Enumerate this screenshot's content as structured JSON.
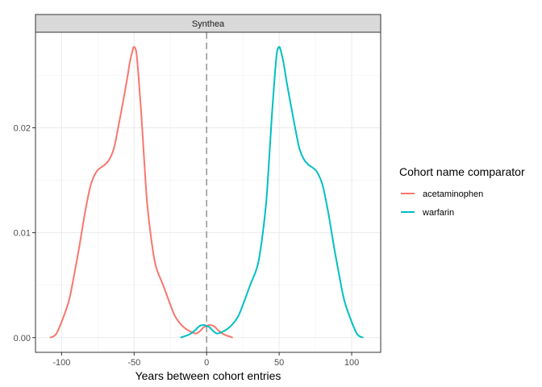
{
  "chart_data": {
    "type": "line",
    "facet_label": "Synthea",
    "xlabel": "Years between cohort entries",
    "ylabel": "",
    "xlim": [
      -118,
      120
    ],
    "ylim": [
      -0.0014,
      0.0291
    ],
    "x_ticks": [
      -100,
      -50,
      0,
      50,
      100
    ],
    "x_tick_labels": [
      "-100",
      "-50",
      "0",
      "50",
      "100"
    ],
    "y_ticks": [
      0.0,
      0.01,
      0.02
    ],
    "y_tick_labels": [
      "0.00",
      "0.01",
      "0.02"
    ],
    "reference_line_x": 0,
    "grid": true,
    "legend": {
      "title": "Cohort name comparator",
      "placement": "right"
    },
    "series": [
      {
        "name": "acetaminophen",
        "color": "#F8766D",
        "points": [
          [
            -108,
            0.0
          ],
          [
            -104,
            0.0003
          ],
          [
            -100,
            0.0015
          ],
          [
            -95,
            0.0035
          ],
          [
            -92,
            0.0055
          ],
          [
            -88,
            0.0085
          ],
          [
            -84,
            0.0118
          ],
          [
            -80,
            0.0145
          ],
          [
            -76,
            0.0158
          ],
          [
            -72,
            0.0163
          ],
          [
            -70,
            0.0165
          ],
          [
            -67,
            0.017
          ],
          [
            -64,
            0.018
          ],
          [
            -61,
            0.02
          ],
          [
            -58,
            0.0222
          ],
          [
            -55,
            0.0245
          ],
          [
            -53,
            0.0262
          ],
          [
            -51,
            0.0274
          ],
          [
            -50,
            0.0277
          ],
          [
            -48.5,
            0.0272
          ],
          [
            -47,
            0.025
          ],
          [
            -45,
            0.0212
          ],
          [
            -43,
            0.0168
          ],
          [
            -41,
            0.0128
          ],
          [
            -38,
            0.0092
          ],
          [
            -35,
            0.0068
          ],
          [
            -30,
            0.005
          ],
          [
            -26,
            0.0035
          ],
          [
            -22,
            0.0021
          ],
          [
            -18,
            0.0013
          ],
          [
            -14,
            0.0008
          ],
          [
            -10,
            0.0005
          ],
          [
            -7,
            0.0004
          ],
          [
            -4,
            0.0007
          ],
          [
            -2,
            0.001
          ],
          [
            0,
            0.0011
          ],
          [
            2,
            0.0012
          ],
          [
            5,
            0.0011
          ],
          [
            8,
            0.0007
          ],
          [
            12,
            0.0003
          ],
          [
            16,
            0.0001
          ],
          [
            18,
            0.0
          ]
        ]
      },
      {
        "name": "warfarin",
        "color": "#00BFC4",
        "points": [
          [
            -18,
            0.0
          ],
          [
            -16,
            0.0001
          ],
          [
            -12,
            0.0003
          ],
          [
            -8,
            0.0007
          ],
          [
            -5,
            0.0011
          ],
          [
            -2,
            0.0012
          ],
          [
            0,
            0.0011
          ],
          [
            2,
            0.001
          ],
          [
            4,
            0.0007
          ],
          [
            7,
            0.0004
          ],
          [
            10,
            0.0005
          ],
          [
            14,
            0.0008
          ],
          [
            18,
            0.0013
          ],
          [
            22,
            0.0021
          ],
          [
            26,
            0.0035
          ],
          [
            30,
            0.005
          ],
          [
            35,
            0.0068
          ],
          [
            38,
            0.0092
          ],
          [
            41,
            0.0128
          ],
          [
            43,
            0.0168
          ],
          [
            45,
            0.0212
          ],
          [
            47,
            0.025
          ],
          [
            48.5,
            0.0272
          ],
          [
            50,
            0.0277
          ],
          [
            51,
            0.0274
          ],
          [
            53,
            0.0262
          ],
          [
            55,
            0.0245
          ],
          [
            58,
            0.0222
          ],
          [
            61,
            0.02
          ],
          [
            64,
            0.018
          ],
          [
            67,
            0.017
          ],
          [
            70,
            0.0165
          ],
          [
            72,
            0.0163
          ],
          [
            76,
            0.0158
          ],
          [
            80,
            0.0145
          ],
          [
            84,
            0.0118
          ],
          [
            88,
            0.0085
          ],
          [
            92,
            0.0055
          ],
          [
            95,
            0.0035
          ],
          [
            100,
            0.0015
          ],
          [
            104,
            0.0003
          ],
          [
            108,
            0.0
          ]
        ]
      }
    ]
  }
}
